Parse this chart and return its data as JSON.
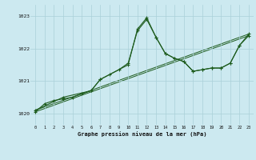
{
  "xlabel_bottom": "Graphe pression niveau de la mer (hPa)",
  "x_ticks": [
    0,
    1,
    2,
    3,
    4,
    5,
    6,
    7,
    8,
    9,
    10,
    11,
    12,
    13,
    14,
    15,
    16,
    17,
    18,
    19,
    20,
    21,
    22,
    23
  ],
  "ylim": [
    1019.65,
    1023.35
  ],
  "yticks": [
    1020,
    1021,
    1022,
    1023
  ],
  "bg_color": "#cce9f0",
  "grid_color": "#aad0d8",
  "line_color": "#1e5c1e",
  "series1_x": [
    0,
    1,
    2,
    3,
    4,
    5,
    6,
    7,
    8,
    9,
    10,
    11,
    12,
    13,
    14,
    15,
    16,
    17,
    18,
    19,
    20,
    21,
    22,
    23
  ],
  "series1_y": [
    1020.05,
    1020.3,
    1020.4,
    1020.45,
    1020.5,
    1020.6,
    1020.7,
    1021.05,
    1021.2,
    1021.35,
    1021.55,
    1022.55,
    1022.9,
    1022.35,
    1021.85,
    1021.7,
    1021.6,
    1021.3,
    1021.35,
    1021.4,
    1021.4,
    1021.55,
    1022.1,
    1022.4
  ],
  "series2_x": [
    0,
    3,
    6,
    7,
    10,
    11,
    12,
    13,
    14,
    15,
    16,
    17,
    18,
    19,
    20,
    21,
    22,
    23
  ],
  "series2_y": [
    1020.1,
    1020.5,
    1020.7,
    1021.05,
    1021.5,
    1022.6,
    1022.95,
    1022.35,
    1021.85,
    1021.7,
    1021.6,
    1021.3,
    1021.35,
    1021.4,
    1021.4,
    1021.55,
    1022.1,
    1022.45
  ],
  "series3_x": [
    0,
    23
  ],
  "series3_y": [
    1020.05,
    1022.4
  ],
  "series4_x": [
    0,
    23
  ],
  "series4_y": [
    1020.1,
    1022.45
  ]
}
